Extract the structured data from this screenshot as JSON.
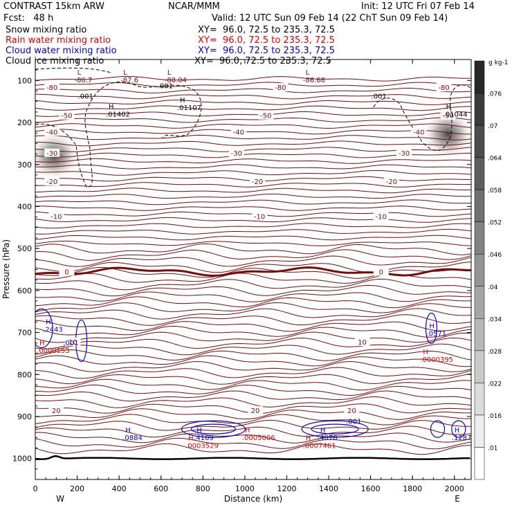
{
  "header": {
    "title_left": "CONTRAST 15km ARW",
    "title_center": "NCAR/MMM",
    "init": "Init: 12 UTC Fri 07 Feb 14",
    "fcst": "Fcst:   48 h",
    "valid": "Valid: 12 UTC Sun 09 Feb 14 (22 ChT Sun 09 Feb 14)",
    "fields": [
      {
        "name": "Snow mixing ratio",
        "xy": "XY=  96.0, 72.5 to 235.3, 72.5",
        "color": "#000000"
      },
      {
        "name": "Rain water mixing ratio",
        "xy": "XY=  96.0, 72.5 to 235.3, 72.5",
        "color": "#dd0000"
      },
      {
        "name": "Cloud water mixing ratio",
        "xy": "XY=  96.0, 72.5 to 235.3, 72.5",
        "color": "#0000cc"
      },
      {
        "name": "Cloud ice mixing ratio",
        "xy": "XY=  96.0, 72.5 to 235.3, 72.5",
        "color": "#000000"
      }
    ]
  },
  "colors": {
    "isotherm": "#7a0a0a",
    "cloud_water": "#0000cc",
    "rain": "#dd0000",
    "ice": "#000000",
    "terrain": "#000000"
  },
  "chart_data": {
    "type": "contour",
    "xlabel": "Distance (km)",
    "ylabel": "Pressure (hPa)",
    "xlim": [
      0,
      2080
    ],
    "ylim": [
      1050,
      50
    ],
    "x_ticks": [
      "0",
      "200",
      "400",
      "600",
      "800",
      "1000",
      "1200",
      "1400",
      "1600",
      "1800",
      "2000"
    ],
    "y_ticks": [
      "100",
      "200",
      "300",
      "400",
      "500",
      "600",
      "700",
      "800",
      "900",
      "1000"
    ],
    "x_endpoints": {
      "left": "W",
      "right": "E"
    },
    "colorbar": {
      "unit": "g kg-1",
      "ticks": [
        ".076",
        ".07",
        ".064",
        ".058",
        ".052",
        ".046",
        ".04",
        ".034",
        ".028",
        ".022",
        ".016",
        ".01"
      ]
    },
    "isotherms": [
      {
        "label": "-80",
        "p": 116,
        "x_labels": [
          80,
          1170,
          1950
        ]
      },
      {
        "label": "-50",
        "p": 183,
        "x_labels": [
          150,
          1100,
          1970
        ]
      },
      {
        "label": "-40",
        "p": 222,
        "x_labels": [
          80,
          970,
          1830
        ]
      },
      {
        "label": "-30",
        "p": 272,
        "x_labels": [
          80,
          960,
          1760
        ]
      },
      {
        "label": "-20",
        "p": 340,
        "x_labels": [
          80,
          1060,
          1700
        ]
      },
      {
        "label": "-10",
        "p": 423,
        "x_labels": [
          100,
          1070,
          1650
        ]
      },
      {
        "label": "0",
        "p": 555,
        "x_labels": [
          150,
          1650
        ]
      },
      {
        "label": "10",
        "p": 722,
        "x_labels": [
          180,
          1560
        ]
      },
      {
        "label": "20",
        "p": 885,
        "x_labels": [
          100,
          1050,
          1510
        ]
      }
    ],
    "extrema": [
      {
        "kind": "L",
        "value": "-86.7",
        "x": 200,
        "p": 86,
        "color": "isotherm"
      },
      {
        "kind": "L",
        "value": "-87.6",
        "x": 420,
        "p": 86,
        "color": "isotherm"
      },
      {
        "kind": "L",
        "value": "-88.04",
        "x": 630,
        "p": 86,
        "color": "isotherm"
      },
      {
        "kind": "L",
        "value": "-86.68",
        "x": 1290,
        "p": 86,
        "color": "isotherm"
      },
      {
        "kind": "H",
        "value": ".01402",
        "x": 350,
        "p": 168,
        "color": "ice"
      },
      {
        "kind": "H",
        "value": ".01107",
        "x": 690,
        "p": 152,
        "color": "ice"
      },
      {
        "kind": "H",
        "value": ".01044",
        "x": 1960,
        "p": 168,
        "color": "ice"
      },
      {
        "kind": "H",
        "value": ".2443",
        "x": 50,
        "p": 680,
        "color": "cloud_water"
      },
      {
        "kind": "H",
        "value": ".0571",
        "x": 1880,
        "p": 690,
        "color": "cloud_water"
      },
      {
        "kind": "H",
        "value": ".0884",
        "x": 430,
        "p": 938,
        "color": "cloud_water"
      },
      {
        "kind": "H",
        "value": ".4189",
        "x": 770,
        "p": 938,
        "color": "cloud_water"
      },
      {
        "kind": "H",
        "value": ".4878",
        "x": 1360,
        "p": 938,
        "color": "cloud_water"
      },
      {
        "kind": "H",
        "value": ".1287",
        "x": 2000,
        "p": 938,
        "color": "cloud_water"
      },
      {
        "kind": "H",
        "value": ".0000155",
        "x": 20,
        "p": 730,
        "color": "rain"
      },
      {
        "kind": "H",
        "value": ".0000395",
        "x": 1850,
        "p": 752,
        "color": "rain"
      },
      {
        "kind": "H",
        "value": ".0003529",
        "x": 730,
        "p": 957,
        "color": "rain"
      },
      {
        "kind": "H",
        "value": ".0005006",
        "x": 1000,
        "p": 938,
        "color": "rain"
      },
      {
        "kind": "H",
        "value": ".0007461",
        "x": 1290,
        "p": 957,
        "color": "rain"
      }
    ],
    "contour_labels": [
      {
        "text": ".001",
        "x": 240,
        "p": 143,
        "color": "ice"
      },
      {
        "text": ".001",
        "x": 620,
        "p": 118,
        "color": "ice"
      },
      {
        "text": ".001",
        "x": 1640,
        "p": 143,
        "color": "ice"
      },
      {
        "text": ".001",
        "x": 170,
        "p": 730,
        "color": "cloud_water"
      },
      {
        "text": ".001",
        "x": 1520,
        "p": 917,
        "color": "cloud_water"
      }
    ],
    "snow_maxima": [
      {
        "x": 90,
        "p": 280
      },
      {
        "x": 1970,
        "p": 228
      }
    ],
    "terrain_p": 1000
  }
}
